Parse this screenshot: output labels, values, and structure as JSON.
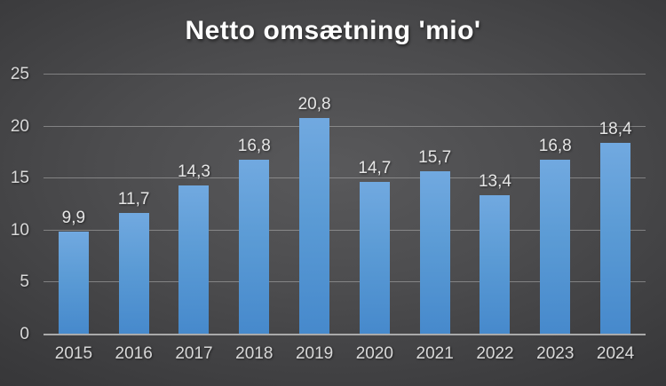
{
  "title": "Netto omsætning 'mio'",
  "colors": {
    "background_center": "#59595b",
    "background_edge": "#28282a",
    "bar_top": "#71a9e0",
    "bar_bottom": "#4689cc",
    "gridline": "#b2b2b2",
    "axis_line": "#aaaaaa",
    "title_text": "#ffffff",
    "label_text": "#d9d9d9",
    "value_text": "#e6e6e6"
  },
  "chart_data": {
    "type": "bar",
    "title": "Netto omsætning 'mio'",
    "categories": [
      "2015",
      "2016",
      "2017",
      "2018",
      "2019",
      "2020",
      "2021",
      "2022",
      "2023",
      "2024"
    ],
    "values": [
      9.9,
      11.7,
      14.3,
      16.8,
      20.8,
      14.7,
      15.7,
      13.4,
      16.8,
      18.4
    ],
    "value_labels": [
      "9,9",
      "11,7",
      "14,3",
      "16,8",
      "20,8",
      "14,7",
      "15,7",
      "13,4",
      "16,8",
      "18,4"
    ],
    "xlabel": "",
    "ylabel": "",
    "ylim": [
      0,
      25
    ],
    "yticks": [
      0,
      5,
      10,
      15,
      20,
      25
    ],
    "grid": true,
    "legend": "none"
  }
}
